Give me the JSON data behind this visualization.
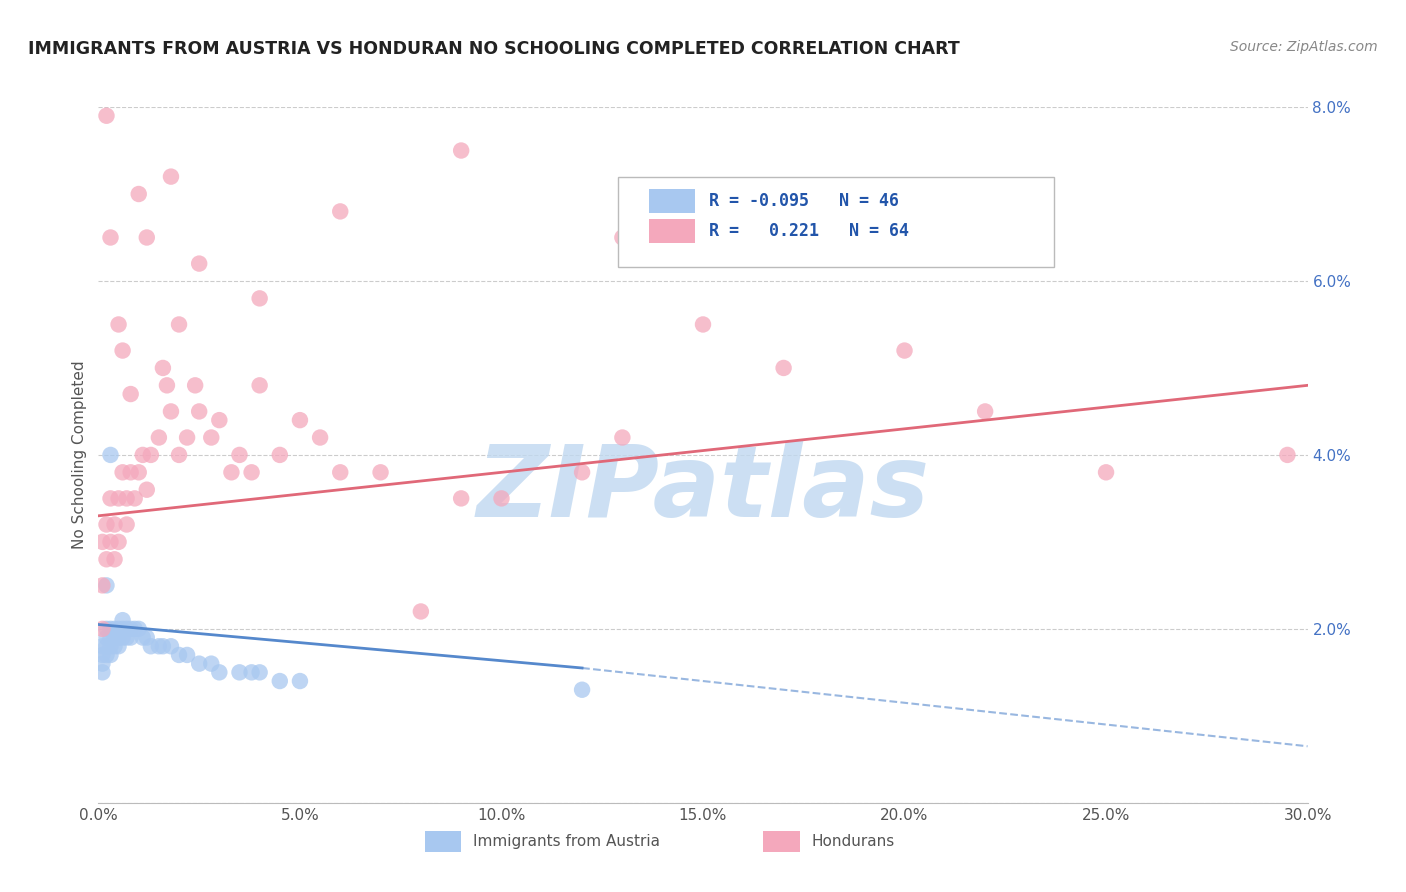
{
  "title": "IMMIGRANTS FROM AUSTRIA VS HONDURAN NO SCHOOLING COMPLETED CORRELATION CHART",
  "source": "Source: ZipAtlas.com",
  "ylabel": "No Schooling Completed",
  "legend_label_1": "Immigrants from Austria",
  "legend_label_2": "Hondurans",
  "R1": -0.095,
  "N1": 46,
  "R2": 0.221,
  "N2": 64,
  "xlim": [
    0.0,
    0.3
  ],
  "ylim": [
    0.0,
    0.08
  ],
  "xticks": [
    0.0,
    0.05,
    0.1,
    0.15,
    0.2,
    0.25,
    0.3
  ],
  "yticks": [
    0.0,
    0.02,
    0.04,
    0.06,
    0.08
  ],
  "xtick_labels": [
    "0.0%",
    "5.0%",
    "10.0%",
    "15.0%",
    "20.0%",
    "25.0%",
    "30.0%"
  ],
  "ytick_labels": [
    "",
    "2.0%",
    "4.0%",
    "6.0%",
    "8.0%"
  ],
  "color_austria": "#A8C8F0",
  "color_honduras": "#F4A8BC",
  "color_trendline_austria": "#5588CC",
  "color_trendline_honduras": "#E06878",
  "watermark": "ZIPatlas",
  "watermark_color": "#C0D8F0",
  "background_color": "#FFFFFF",
  "austria_x": [
    0.001,
    0.001,
    0.001,
    0.001,
    0.002,
    0.002,
    0.002,
    0.002,
    0.003,
    0.003,
    0.003,
    0.003,
    0.004,
    0.004,
    0.004,
    0.005,
    0.005,
    0.005,
    0.006,
    0.006,
    0.006,
    0.007,
    0.007,
    0.008,
    0.008,
    0.009,
    0.01,
    0.011,
    0.012,
    0.013,
    0.015,
    0.016,
    0.018,
    0.02,
    0.022,
    0.025,
    0.028,
    0.03,
    0.035,
    0.038,
    0.04,
    0.045,
    0.05,
    0.12,
    0.002,
    0.003
  ],
  "austria_y": [
    0.018,
    0.017,
    0.016,
    0.015,
    0.019,
    0.018,
    0.017,
    0.02,
    0.02,
    0.019,
    0.018,
    0.017,
    0.02,
    0.019,
    0.018,
    0.02,
    0.019,
    0.018,
    0.02,
    0.019,
    0.021,
    0.02,
    0.019,
    0.02,
    0.019,
    0.02,
    0.02,
    0.019,
    0.019,
    0.018,
    0.018,
    0.018,
    0.018,
    0.017,
    0.017,
    0.016,
    0.016,
    0.015,
    0.015,
    0.015,
    0.015,
    0.014,
    0.014,
    0.013,
    0.025,
    0.04
  ],
  "honduras_x": [
    0.001,
    0.001,
    0.001,
    0.002,
    0.002,
    0.003,
    0.003,
    0.004,
    0.004,
    0.005,
    0.005,
    0.006,
    0.007,
    0.007,
    0.008,
    0.009,
    0.01,
    0.011,
    0.012,
    0.013,
    0.015,
    0.016,
    0.017,
    0.018,
    0.02,
    0.022,
    0.024,
    0.025,
    0.028,
    0.03,
    0.033,
    0.035,
    0.038,
    0.04,
    0.045,
    0.05,
    0.055,
    0.06,
    0.07,
    0.08,
    0.09,
    0.1,
    0.12,
    0.13,
    0.15,
    0.17,
    0.2,
    0.22,
    0.25,
    0.295,
    0.003,
    0.006,
    0.008,
    0.012,
    0.018,
    0.025,
    0.04,
    0.06,
    0.09,
    0.13,
    0.002,
    0.005,
    0.01,
    0.02
  ],
  "honduras_y": [
    0.025,
    0.03,
    0.02,
    0.028,
    0.032,
    0.03,
    0.035,
    0.032,
    0.028,
    0.035,
    0.03,
    0.038,
    0.035,
    0.032,
    0.038,
    0.035,
    0.038,
    0.04,
    0.036,
    0.04,
    0.042,
    0.05,
    0.048,
    0.045,
    0.04,
    0.042,
    0.048,
    0.045,
    0.042,
    0.044,
    0.038,
    0.04,
    0.038,
    0.048,
    0.04,
    0.044,
    0.042,
    0.038,
    0.038,
    0.022,
    0.035,
    0.035,
    0.038,
    0.042,
    0.055,
    0.05,
    0.052,
    0.045,
    0.038,
    0.04,
    0.065,
    0.052,
    0.047,
    0.065,
    0.072,
    0.062,
    0.058,
    0.068,
    0.075,
    0.065,
    0.079,
    0.055,
    0.07,
    0.055
  ]
}
